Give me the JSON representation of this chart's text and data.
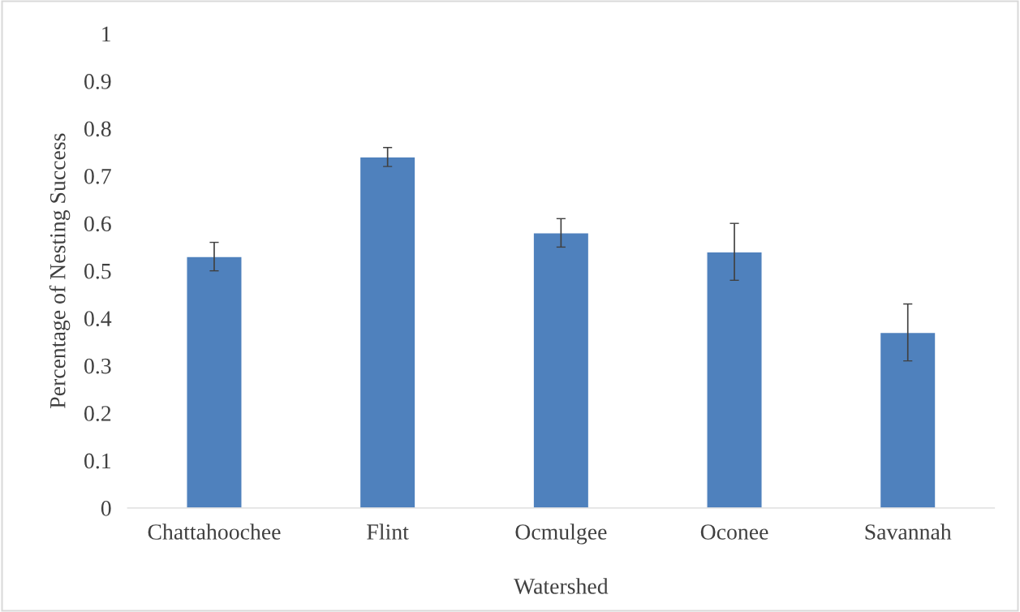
{
  "chart_data": {
    "type": "bar",
    "xlabel": "Watershed",
    "ylabel": "Percentage of Nesting Success",
    "categories": [
      "Chattahoochee",
      "Flint",
      "Ocmulgee",
      "Oconee",
      "Savannah"
    ],
    "values": [
      0.53,
      0.74,
      0.58,
      0.54,
      0.37
    ],
    "errors": [
      0.03,
      0.02,
      0.03,
      0.06,
      0.06
    ],
    "color": "#4f81bd",
    "ylim": [
      0,
      1
    ],
    "yticks": [
      0,
      0.1,
      0.2,
      0.3,
      0.4,
      0.5,
      0.6,
      0.7,
      0.8,
      0.9,
      1
    ],
    "grid": false
  }
}
